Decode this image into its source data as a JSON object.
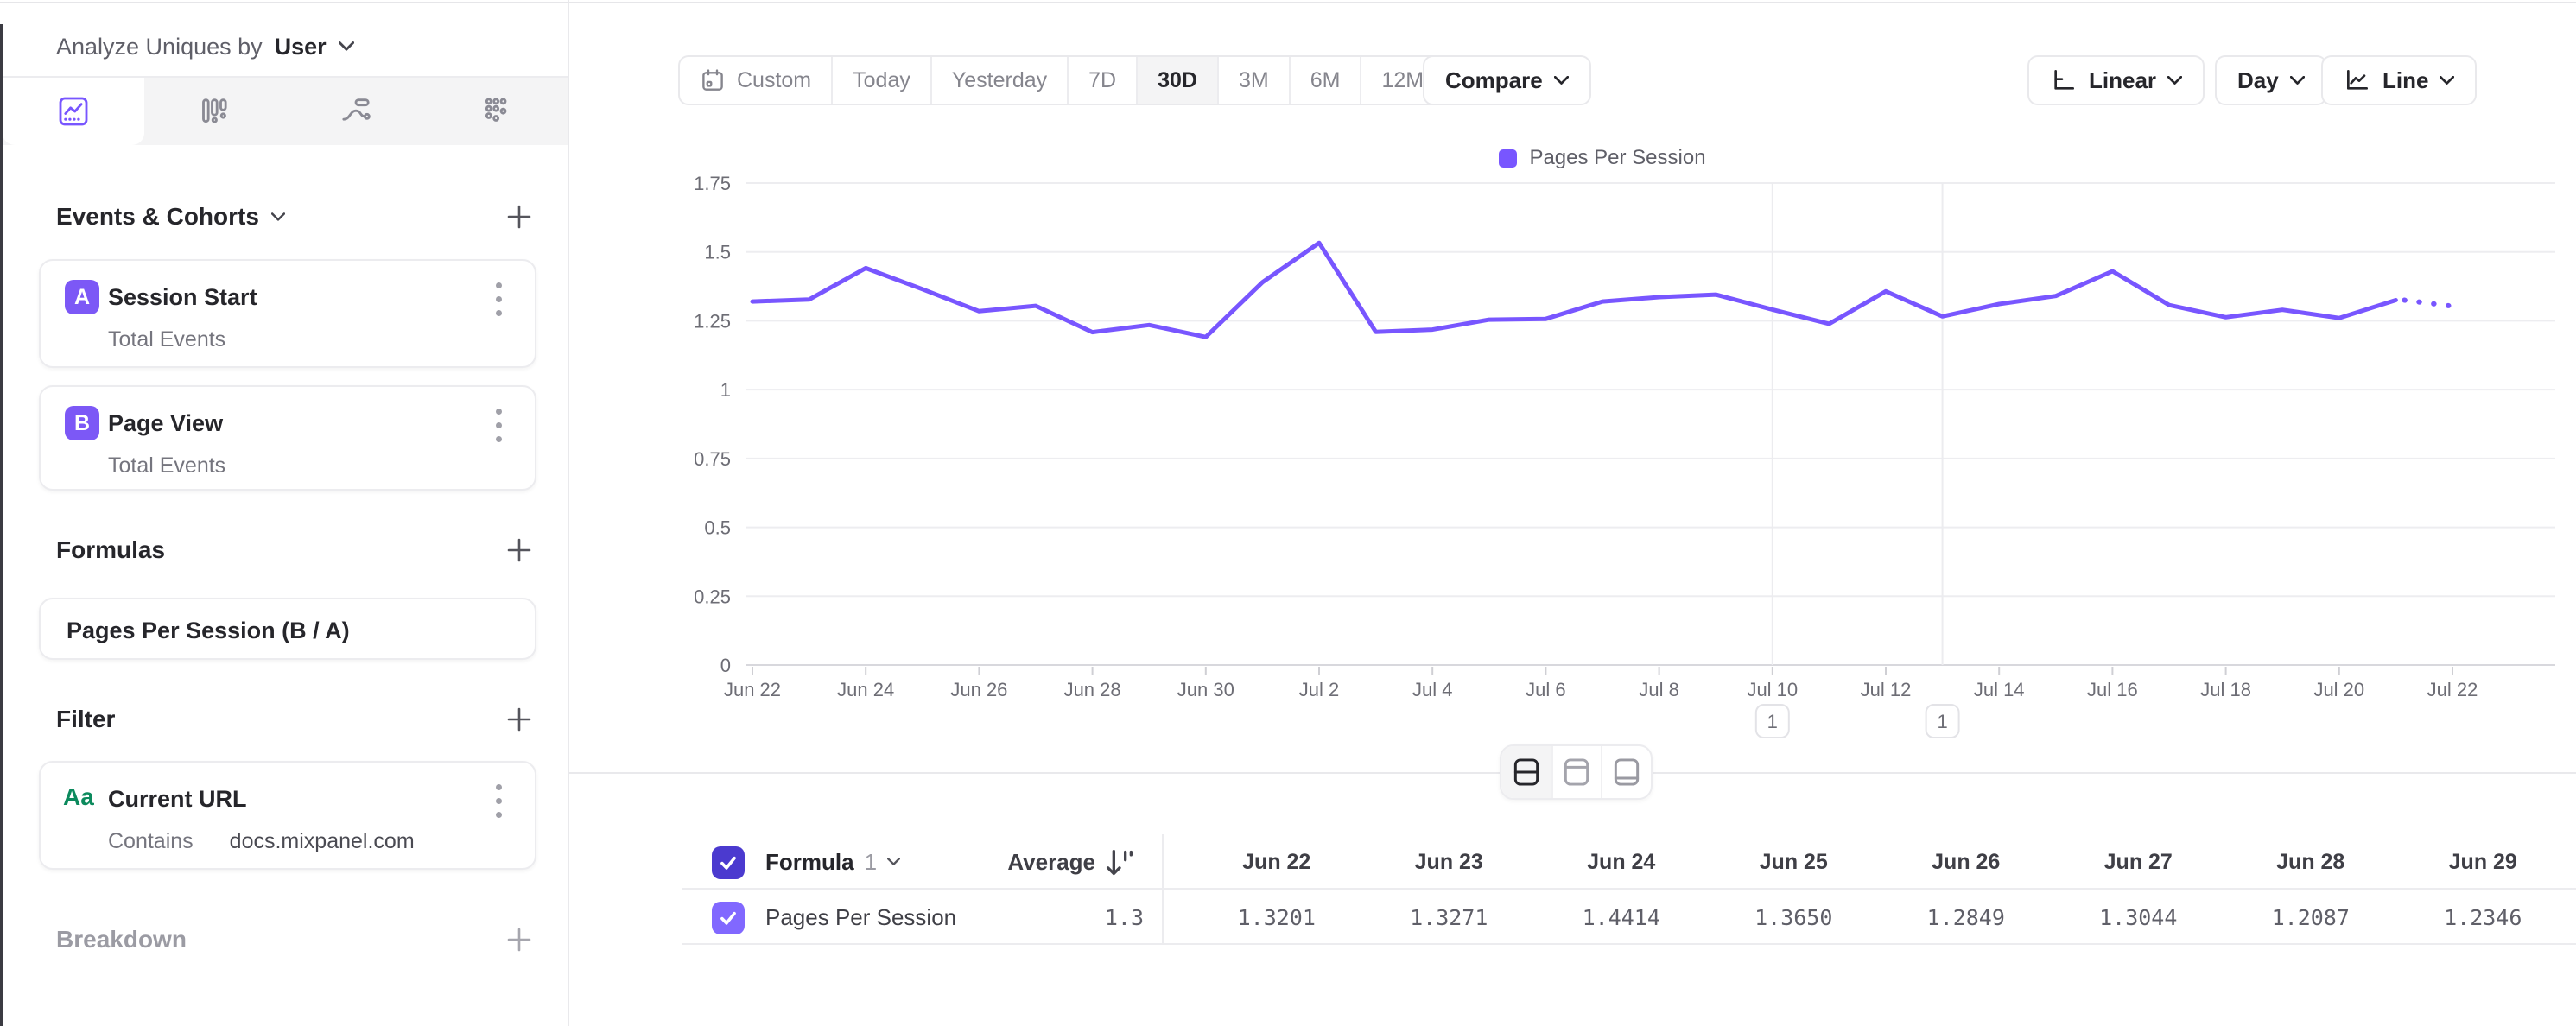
{
  "sidebar": {
    "analyze_label": "Analyze Uniques by",
    "analyze_value": "User",
    "tabs": [
      "insights-line",
      "funnels-bars",
      "flows",
      "retention-grid"
    ],
    "active_tab": "insights-line",
    "sections": {
      "events": {
        "title": "Events & Cohorts"
      },
      "formulas": {
        "title": "Formulas"
      },
      "filter": {
        "title": "Filter"
      },
      "breakdown": {
        "title": "Breakdown"
      }
    },
    "events": [
      {
        "badge": "A",
        "label": "Session Start",
        "sub": "Total Events"
      },
      {
        "badge": "B",
        "label": "Page View",
        "sub": "Total Events"
      }
    ],
    "formula_card": {
      "label": "Pages Per Session (B / A)"
    },
    "filter_card": {
      "badge": "Aa",
      "label": "Current URL",
      "operator": "Contains",
      "value": "docs.mixpanel.com"
    }
  },
  "toolbar": {
    "ranges": [
      "Custom",
      "Today",
      "Yesterday",
      "7D",
      "30D",
      "3M",
      "6M",
      "12M"
    ],
    "active_range": "30D",
    "compare_label": "Compare",
    "scale_label": "Linear",
    "interval_label": "Day",
    "chart_type_label": "Line"
  },
  "chart_data": {
    "type": "line",
    "series_name": "Pages Per Session",
    "line_color": "#7856ff",
    "legend_position": "top-center",
    "ylim": [
      0,
      1.75
    ],
    "y_ticks": [
      "0",
      "0.25",
      "0.5",
      "0.75",
      "1",
      "1.25",
      "1.5",
      "1.75"
    ],
    "x": [
      "Jun 22",
      "Jun 23",
      "Jun 24",
      "Jun 25",
      "Jun 26",
      "Jun 27",
      "Jun 28",
      "Jun 29",
      "Jun 30",
      "Jul 1",
      "Jul 2",
      "Jul 3",
      "Jul 4",
      "Jul 5",
      "Jul 6",
      "Jul 7",
      "Jul 8",
      "Jul 9",
      "Jul 10",
      "Jul 11",
      "Jul 12",
      "Jul 13",
      "Jul 14",
      "Jul 15",
      "Jul 16",
      "Jul 17",
      "Jul 18",
      "Jul 19",
      "Jul 20",
      "Jul 21",
      "Jul 22"
    ],
    "values": [
      1.3201,
      1.3271,
      1.4414,
      1.365,
      1.2849,
      1.3044,
      1.2087,
      1.2346,
      1.191,
      1.39,
      1.533,
      1.21,
      1.218,
      1.254,
      1.257,
      1.32,
      1.336,
      1.345,
      1.291,
      1.239,
      1.357,
      1.266,
      1.311,
      1.34,
      1.43,
      1.307,
      1.263,
      1.29,
      1.26,
      1.325,
      1.3
    ],
    "dotted_from_index": 29,
    "x_label_every": 2,
    "annotations": [
      {
        "label": "1",
        "date": "Jul 10",
        "index": 18
      },
      {
        "label": "1",
        "date": "Jul 13",
        "index": 21
      }
    ]
  },
  "table": {
    "header": {
      "name": "Formula",
      "index": "1",
      "average_label": "Average"
    },
    "row": {
      "name": "Pages Per Session",
      "average": "1.3"
    },
    "columns": [
      "Jun 22",
      "Jun 23",
      "Jun 24",
      "Jun 25",
      "Jun 26",
      "Jun 27",
      "Jun 28",
      "Jun 29"
    ],
    "values": [
      "1.3201",
      "1.3271",
      "1.4414",
      "1.3650",
      "1.2849",
      "1.3044",
      "1.2087",
      "1.2346"
    ]
  }
}
